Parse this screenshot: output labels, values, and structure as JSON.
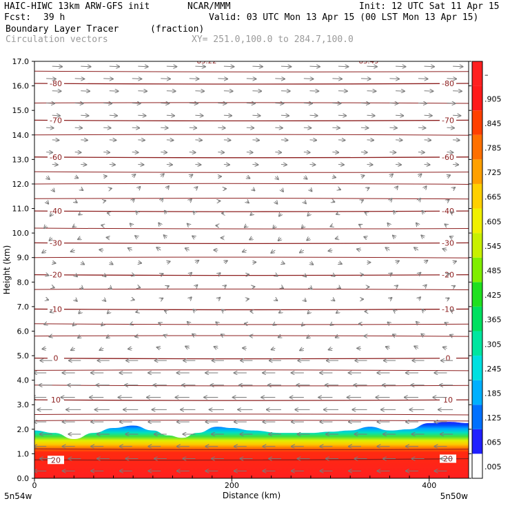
{
  "header": {
    "model": "HAIC-HIWC 13km ARW-GFS init",
    "org": "NCAR/MMM",
    "init": "Init: 12 UTC Sat 11 Apr 15",
    "fcst_label": "Fcst:",
    "fcst_value": "39 h",
    "valid": "Valid: 03 UTC Mon 13 Apr 15 (00 LST Mon 13 Apr 15)",
    "field": "Boundary Layer Tracer",
    "units": "(fraction)",
    "overlay": "Circulation vectors",
    "xy": "XY= 251.0,100.0 to 284.7,100.0"
  },
  "chart_data": {
    "type": "heatmap",
    "title": "Boundary Layer Tracer",
    "xlabel": "Distance (km)",
    "ylabel": "Height (km)",
    "xlim": [
      0,
      440
    ],
    "ylim": [
      0,
      17
    ],
    "x_ticks": [
      0,
      200,
      400
    ],
    "y_ticks": [
      "0.0",
      "1.0",
      "2.0",
      "3.0",
      "4.0",
      "5.0",
      "6.0",
      "7.0",
      "8.0",
      "9.0",
      "10.0",
      "11.0",
      "12.0",
      "13.0",
      "14.0",
      "15.0",
      "16.0",
      "17.0"
    ],
    "x_endpoint_labels": {
      "left": "5n54w",
      "right": "5n50w"
    },
    "colorbar": {
      "labels": [
        ".005",
        ".065",
        ".125",
        ".185",
        ".245",
        ".305",
        ".365",
        ".425",
        ".485",
        ".545",
        ".605",
        ".665",
        ".725",
        ".785",
        ".845",
        ".905",
        "–"
      ],
      "colors": [
        "#ffffff",
        "#2020ff",
        "#0070ff",
        "#00b0ff",
        "#00e0e0",
        "#00e6a0",
        "#00e060",
        "#20e020",
        "#80ee00",
        "#c8f000",
        "#f0f000",
        "#ffd000",
        "#ffa000",
        "#ff7000",
        "#ff4000",
        "#ff1a1a",
        "#ff2020"
      ]
    },
    "pbl_top_km": [
      [
        0,
        1.95
      ],
      [
        20,
        1.85
      ],
      [
        40,
        1.6
      ],
      [
        60,
        1.85
      ],
      [
        80,
        2.05
      ],
      [
        100,
        2.15
      ],
      [
        120,
        1.95
      ],
      [
        135,
        1.75
      ],
      [
        150,
        1.65
      ],
      [
        165,
        1.85
      ],
      [
        185,
        2.1
      ],
      [
        200,
        2.05
      ],
      [
        220,
        1.95
      ],
      [
        250,
        1.85
      ],
      [
        280,
        1.85
      ],
      [
        300,
        1.9
      ],
      [
        320,
        1.95
      ],
      [
        340,
        2.1
      ],
      [
        360,
        1.95
      ],
      [
        380,
        2.0
      ],
      [
        400,
        2.25
      ],
      [
        420,
        2.3
      ],
      [
        440,
        2.25
      ]
    ],
    "temperature_contours": [
      {
        "label": "-80",
        "y_left": 16.1,
        "y_right": 16.1
      },
      {
        "label": "-70",
        "y_left": 14.6,
        "y_right": 14.6
      },
      {
        "label": "-60",
        "y_left": 13.1,
        "y_right": 13.1
      },
      {
        "label": "-40",
        "y_left": 10.9,
        "y_right": 10.9
      },
      {
        "label": "-30",
        "y_left": 9.6,
        "y_right": 9.6
      },
      {
        "label": "-20",
        "y_left": 8.3,
        "y_right": 8.3
      },
      {
        "label": "-10",
        "y_left": 6.9,
        "y_right": 6.9
      },
      {
        "label": "0",
        "y_left": 4.9,
        "y_right": 4.9
      },
      {
        "label": "10",
        "y_left": 3.2,
        "y_right": 3.2
      },
      {
        "label": "20",
        "y_left": 0.75,
        "y_right": 0.8
      }
    ],
    "unlabeled_contours_km": [
      16.6,
      15.3,
      14.0,
      12.5,
      12.0,
      11.4,
      10.2,
      9.0,
      7.7,
      6.3,
      5.8,
      4.4,
      3.8,
      2.6,
      2.35,
      1.2
    ],
    "top_contour_labels": [
      "85.22",
      "83.49"
    ]
  }
}
